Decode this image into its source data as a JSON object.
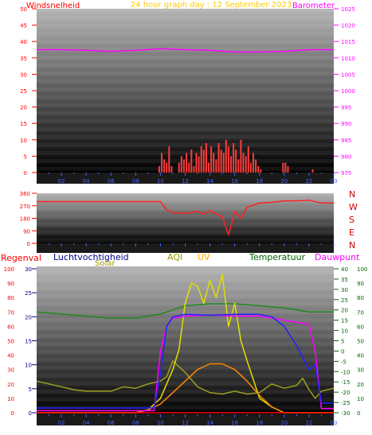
{
  "title": "24 hour graph day : 12 September 2023",
  "colors": {
    "wind": "#ff3b3b",
    "baro": "#ff00ff",
    "dir": "#ff2222",
    "rain": "#ff0000",
    "hum": "#2222ff",
    "solar": "#e0e000",
    "uv": "#ff8800",
    "aqi": "#9aa020",
    "temp": "#1e8a1e",
    "dew": "#ff00ff",
    "label_green": "#006400",
    "label_aqi": "#999900",
    "label_uv": "#ffaa00",
    "label_dark": "#333333",
    "title": "#ffcc00"
  },
  "panels": {
    "wind": {
      "left_label": "Windsnelheid",
      "right_label": "Barometer",
      "left_ticks": [
        "0",
        "5",
        "10",
        "15",
        "20",
        "25",
        "30",
        "35",
        "40",
        "45",
        "50"
      ],
      "right_ticks": [
        "975",
        "980",
        "985",
        "990",
        "995",
        "1000",
        "1005",
        "1010",
        "1015",
        "1020",
        "1025"
      ]
    },
    "direction": {
      "left_ticks": [
        "0",
        "90",
        "180",
        "270",
        "360"
      ],
      "compass": [
        "N",
        "W",
        "S",
        "E",
        "N"
      ]
    },
    "bottom": {
      "labels": {
        "rain": "Regenval",
        "hum": "Luchtvochtigheid",
        "solar": "Solar",
        "aqi": "AQI",
        "uv": "UV",
        "temp": "Temperatuur",
        "dew": "Dauwpunt"
      },
      "rain_ticks": [
        "0",
        "10",
        "20",
        "30",
        "40",
        "50",
        "60",
        "70",
        "80",
        "90",
        "100"
      ],
      "hum_ticks": [
        "0",
        "5",
        "10",
        "15",
        "20",
        "25",
        "30"
      ],
      "temp_ticks": [
        "-30",
        "-25",
        "-20",
        "-15",
        "-10",
        "-5",
        "0",
        "5",
        "10",
        "15",
        "20",
        "25",
        "30",
        "35",
        "40"
      ],
      "far_ticks": [
        "0",
        "10",
        "20",
        "30",
        "40",
        "50",
        "60",
        "70",
        "80",
        "90",
        "100"
      ]
    }
  },
  "x_ticks": [
    "02",
    "04",
    "06",
    "08",
    "10",
    "12",
    "14",
    "16",
    "18",
    "20",
    "22",
    "00"
  ],
  "chart_data": [
    {
      "type": "line",
      "name": "Barometer",
      "x_hours": [
        0,
        2,
        4,
        6,
        8,
        10,
        12,
        14,
        16,
        18,
        20,
        22,
        24
      ],
      "values": [
        1012.5,
        1012.5,
        1012.3,
        1012.0,
        1012.3,
        1012.8,
        1012.5,
        1012.3,
        1011.8,
        1011.8,
        1012.0,
        1012.5,
        1012.5
      ]
    },
    {
      "type": "bar",
      "name": "Windsnelheid",
      "x_hours": [
        9.9,
        10.1,
        10.3,
        10.5,
        10.7,
        10.9,
        11.5,
        11.7,
        11.9,
        12.1,
        12.3,
        12.5,
        12.7,
        12.9,
        13.1,
        13.3,
        13.5,
        13.7,
        13.9,
        14.1,
        14.3,
        14.5,
        14.7,
        14.9,
        15.1,
        15.3,
        15.5,
        15.7,
        15.9,
        16.1,
        16.3,
        16.5,
        16.7,
        16.9,
        17.1,
        17.3,
        17.5,
        17.7,
        17.9,
        18.1,
        19.9,
        20.1,
        20.3,
        22.3
      ],
      "values": [
        2,
        6,
        4,
        3,
        8,
        2,
        3,
        5,
        4,
        6,
        3,
        7,
        2,
        6,
        5,
        8,
        7,
        9,
        3,
        8,
        6,
        4,
        9,
        7,
        6,
        10,
        8,
        5,
        9,
        7,
        4,
        10,
        6,
        5,
        8,
        3,
        6,
        4,
        2,
        1,
        3,
        3,
        2,
        1
      ]
    },
    {
      "type": "line",
      "name": "Windrichting",
      "x_hours": [
        0,
        4,
        8,
        10,
        10.5,
        11,
        12,
        13,
        13.5,
        14,
        15,
        15.5,
        16,
        16.5,
        17,
        18,
        19,
        20,
        21,
        22,
        23,
        24
      ],
      "values": [
        300,
        300,
        300,
        300,
        240,
        220,
        215,
        230,
        210,
        235,
        190,
        60,
        230,
        180,
        260,
        290,
        295,
        305,
        305,
        310,
        290,
        290
      ]
    },
    {
      "type": "line",
      "name": "Temperatuur",
      "x_hours": [
        0,
        2,
        4,
        6,
        8,
        10,
        12,
        14,
        16,
        18,
        20,
        22,
        24
      ],
      "values": [
        19,
        18,
        17,
        16,
        16,
        18,
        22,
        23,
        23,
        22,
        21,
        19,
        19
      ]
    },
    {
      "type": "line",
      "name": "Luchtvochtigheid",
      "x_hours": [
        0,
        2,
        4,
        6,
        8,
        9.5,
        10,
        10.5,
        11,
        12,
        14,
        16,
        18,
        19,
        20,
        21,
        22,
        22.5,
        23,
        24
      ],
      "values": [
        1,
        1,
        1,
        1,
        1,
        1,
        8,
        18,
        20,
        20.5,
        20.3,
        20.5,
        20.5,
        20,
        18,
        14,
        9,
        10,
        2,
        2
      ]
    },
    {
      "type": "line",
      "name": "Dauwpunt",
      "x_hours": [
        0,
        2,
        4,
        6,
        8,
        9.5,
        10,
        10.5,
        11,
        12,
        14,
        16,
        18,
        19,
        20,
        21,
        22,
        22.5,
        23,
        24
      ],
      "values": [
        -29,
        -29,
        -29,
        -29,
        -29,
        -29,
        0,
        12,
        16,
        17,
        17.5,
        17,
        17,
        16,
        15,
        14,
        13,
        0,
        -28,
        -28
      ]
    },
    {
      "type": "line",
      "name": "Solar",
      "x_hours": [
        0,
        6,
        8,
        9,
        10,
        10.5,
        11,
        11.5,
        12,
        12.5,
        13,
        13.5,
        14,
        14.5,
        15,
        15.5,
        16,
        16.5,
        17,
        18,
        19,
        20,
        24
      ],
      "values": [
        0,
        0,
        0,
        1,
        5,
        10,
        15,
        22,
        38,
        45,
        44,
        38,
        46,
        40,
        48,
        30,
        38,
        25,
        18,
        5,
        2,
        0,
        0
      ]
    },
    {
      "type": "line",
      "name": "UV",
      "x_hours": [
        0,
        8,
        9,
        10,
        11,
        12,
        13,
        14,
        15,
        16,
        17,
        18,
        19,
        20,
        24
      ],
      "values": [
        0,
        0,
        1,
        3,
        7,
        11,
        15,
        17,
        17,
        15,
        11,
        6,
        2,
        0,
        0
      ]
    },
    {
      "type": "line",
      "name": "AQI",
      "x_hours": [
        0,
        1,
        2,
        3,
        4,
        5,
        6,
        7,
        8,
        9,
        10,
        10.5,
        11,
        12,
        13,
        14,
        15,
        16,
        17,
        18,
        19,
        20,
        21,
        21.5,
        22,
        22.5,
        23,
        24
      ],
      "values": [
        22,
        20,
        18,
        16,
        15,
        15,
        15,
        18,
        17,
        20,
        22,
        25,
        36,
        28,
        18,
        14,
        13,
        15,
        13,
        14,
        20,
        17,
        19,
        24,
        16,
        10,
        15,
        17
      ]
    }
  ]
}
